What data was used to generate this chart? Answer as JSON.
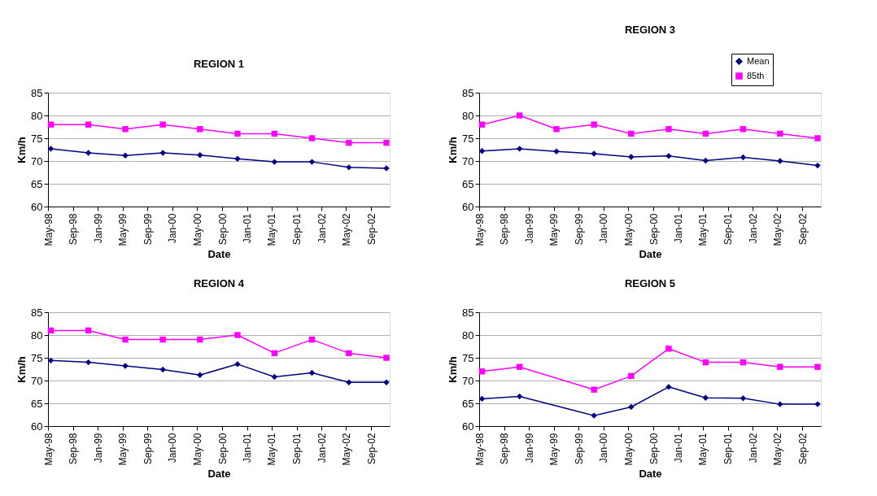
{
  "chart_data": [
    {
      "type": "line",
      "title": "REGION 1",
      "xlabel": "Date",
      "ylabel": "Km/h",
      "grid": "y",
      "legend": false,
      "x": [
        "1998-05-15",
        "1998-11-15",
        "1999-05-15",
        "1999-11-15",
        "2000-05-15",
        "2000-11-15",
        "2001-05-15",
        "2001-11-15",
        "2002-05-15",
        "2002-11-15"
      ],
      "xlim": [
        "1998-05-01",
        "2002-12-01"
      ],
      "xticks": [
        {
          "value": "1998-05-01",
          "label": "May-98"
        },
        {
          "value": "1998-09-01",
          "label": "Sep-98"
        },
        {
          "value": "1999-01-01",
          "label": "Jan-99"
        },
        {
          "value": "1999-05-01",
          "label": "May-99"
        },
        {
          "value": "1999-09-01",
          "label": "Sep-99"
        },
        {
          "value": "2000-01-01",
          "label": "Jan-00"
        },
        {
          "value": "2000-05-01",
          "label": "May-00"
        },
        {
          "value": "2000-09-01",
          "label": "Sep-00"
        },
        {
          "value": "2001-01-01",
          "label": "Jan-01"
        },
        {
          "value": "2001-05-01",
          "label": "May-01"
        },
        {
          "value": "2001-09-01",
          "label": "Sep-01"
        },
        {
          "value": "2002-01-01",
          "label": "Jan-02"
        },
        {
          "value": "2002-05-01",
          "label": "May-02"
        },
        {
          "value": "2002-09-01",
          "label": "Sep-02"
        }
      ],
      "ylim": [
        60,
        85
      ],
      "yticks": [
        60,
        65,
        70,
        75,
        80,
        85
      ],
      "series": [
        {
          "color": "#000080",
          "marker": "diamond",
          "values": [
            72.7,
            71.8,
            71.2,
            71.8,
            71.3,
            70.5,
            69.8,
            69.8,
            68.6,
            68.4
          ]
        },
        {
          "color": "#ff00ff",
          "marker": "square",
          "values": [
            78,
            78,
            77,
            78,
            77,
            76,
            76,
            75,
            74,
            74
          ]
        }
      ]
    },
    {
      "type": "line",
      "title": "REGION 3",
      "xlabel": "Date",
      "ylabel": "Km/h",
      "grid": "y",
      "legend": "top right",
      "x": [
        "1998-05-15",
        "1998-11-15",
        "1999-05-15",
        "1999-11-15",
        "2000-05-15",
        "2000-11-15",
        "2001-05-15",
        "2001-11-15",
        "2002-05-15",
        "2002-11-15"
      ],
      "xlim": [
        "1998-05-01",
        "2002-12-01"
      ],
      "xticks": [
        {
          "value": "1998-05-01",
          "label": "May-98"
        },
        {
          "value": "1998-09-01",
          "label": "Sep-98"
        },
        {
          "value": "1999-01-01",
          "label": "Jan-99"
        },
        {
          "value": "1999-05-01",
          "label": "May-99"
        },
        {
          "value": "1999-09-01",
          "label": "Sep-99"
        },
        {
          "value": "2000-01-01",
          "label": "Jan-00"
        },
        {
          "value": "2000-05-01",
          "label": "May-00"
        },
        {
          "value": "2000-09-01",
          "label": "Sep-00"
        },
        {
          "value": "2001-01-01",
          "label": "Jan-01"
        },
        {
          "value": "2001-05-01",
          "label": "May-01"
        },
        {
          "value": "2001-09-01",
          "label": "Sep-01"
        },
        {
          "value": "2002-01-01",
          "label": "Jan-02"
        },
        {
          "value": "2002-05-01",
          "label": "May-02"
        },
        {
          "value": "2002-09-01",
          "label": "Sep-02"
        }
      ],
      "ylim": [
        60,
        85
      ],
      "yticks": [
        60,
        65,
        70,
        75,
        80,
        85
      ],
      "series": [
        {
          "name": "Mean",
          "color": "#000080",
          "marker": "diamond",
          "values": [
            72.2,
            72.7,
            72.1,
            71.6,
            70.9,
            71.1,
            70.1,
            70.8,
            70.0,
            69.0
          ]
        },
        {
          "name": "85th",
          "color": "#ff00ff",
          "marker": "square",
          "values": [
            78,
            80,
            77,
            78,
            76,
            77,
            76,
            77,
            76,
            75
          ]
        }
      ]
    },
    {
      "type": "line",
      "title": "REGION 4",
      "xlabel": "Date",
      "ylabel": "Km/h",
      "grid": "y",
      "legend": false,
      "x": [
        "1998-05-15",
        "1998-11-15",
        "1999-05-15",
        "1999-11-15",
        "2000-05-15",
        "2000-11-15",
        "2001-05-15",
        "2001-11-15",
        "2002-05-15",
        "2002-11-15"
      ],
      "xlim": [
        "1998-05-01",
        "2002-12-01"
      ],
      "xticks": [
        {
          "value": "1998-05-01",
          "label": "May-98"
        },
        {
          "value": "1998-09-01",
          "label": "Sep-98"
        },
        {
          "value": "1999-01-01",
          "label": "Jan-99"
        },
        {
          "value": "1999-05-01",
          "label": "May-99"
        },
        {
          "value": "1999-09-01",
          "label": "Sep-99"
        },
        {
          "value": "2000-01-01",
          "label": "Jan-00"
        },
        {
          "value": "2000-05-01",
          "label": "May-00"
        },
        {
          "value": "2000-09-01",
          "label": "Sep-00"
        },
        {
          "value": "2001-01-01",
          "label": "Jan-01"
        },
        {
          "value": "2001-05-01",
          "label": "May-01"
        },
        {
          "value": "2001-09-01",
          "label": "Sep-01"
        },
        {
          "value": "2002-01-01",
          "label": "Jan-02"
        },
        {
          "value": "2002-05-01",
          "label": "May-02"
        },
        {
          "value": "2002-09-01",
          "label": "Sep-02"
        }
      ],
      "ylim": [
        60,
        85
      ],
      "yticks": [
        60,
        65,
        70,
        75,
        80,
        85
      ],
      "series": [
        {
          "color": "#000080",
          "marker": "diamond",
          "values": [
            74.4,
            74.0,
            73.2,
            72.4,
            71.2,
            73.6,
            70.8,
            71.7,
            69.6,
            69.6
          ]
        },
        {
          "color": "#ff00ff",
          "marker": "square",
          "values": [
            81,
            81,
            79,
            79,
            79,
            80,
            76,
            79,
            76,
            75
          ]
        }
      ]
    },
    {
      "type": "line",
      "title": "REGION 5",
      "xlabel": "Date",
      "ylabel": "Km/h",
      "grid": "y",
      "legend": false,
      "x": [
        "1998-05-15",
        "1998-11-15",
        "1999-11-15",
        "2000-05-15",
        "2000-11-15",
        "2001-05-15",
        "2001-11-15",
        "2002-05-15",
        "2002-11-15"
      ],
      "xlim": [
        "1998-05-01",
        "2002-12-01"
      ],
      "xticks": [
        {
          "value": "1998-05-01",
          "label": "May-98"
        },
        {
          "value": "1998-09-01",
          "label": "Sep-98"
        },
        {
          "value": "1999-01-01",
          "label": "Jan-99"
        },
        {
          "value": "1999-05-01",
          "label": "May-99"
        },
        {
          "value": "1999-09-01",
          "label": "Sep-99"
        },
        {
          "value": "2000-01-01",
          "label": "Jan-00"
        },
        {
          "value": "2000-05-01",
          "label": "May-00"
        },
        {
          "value": "2000-09-01",
          "label": "Sep-00"
        },
        {
          "value": "2001-01-01",
          "label": "Jan-01"
        },
        {
          "value": "2001-05-01",
          "label": "May-01"
        },
        {
          "value": "2001-09-01",
          "label": "Sep-01"
        },
        {
          "value": "2002-01-01",
          "label": "Jan-02"
        },
        {
          "value": "2002-05-01",
          "label": "May-02"
        },
        {
          "value": "2002-09-01",
          "label": "Sep-02"
        }
      ],
      "ylim": [
        60,
        85
      ],
      "yticks": [
        60,
        65,
        70,
        75,
        80,
        85
      ],
      "series": [
        {
          "color": "#000080",
          "marker": "diamond",
          "values": [
            66.0,
            66.5,
            62.3,
            64.2,
            68.6,
            66.2,
            66.1,
            64.8,
            64.8
          ]
        },
        {
          "color": "#ff00ff",
          "marker": "square",
          "values": [
            72,
            73,
            68,
            71,
            77,
            74,
            74,
            73,
            73
          ]
        }
      ]
    }
  ]
}
